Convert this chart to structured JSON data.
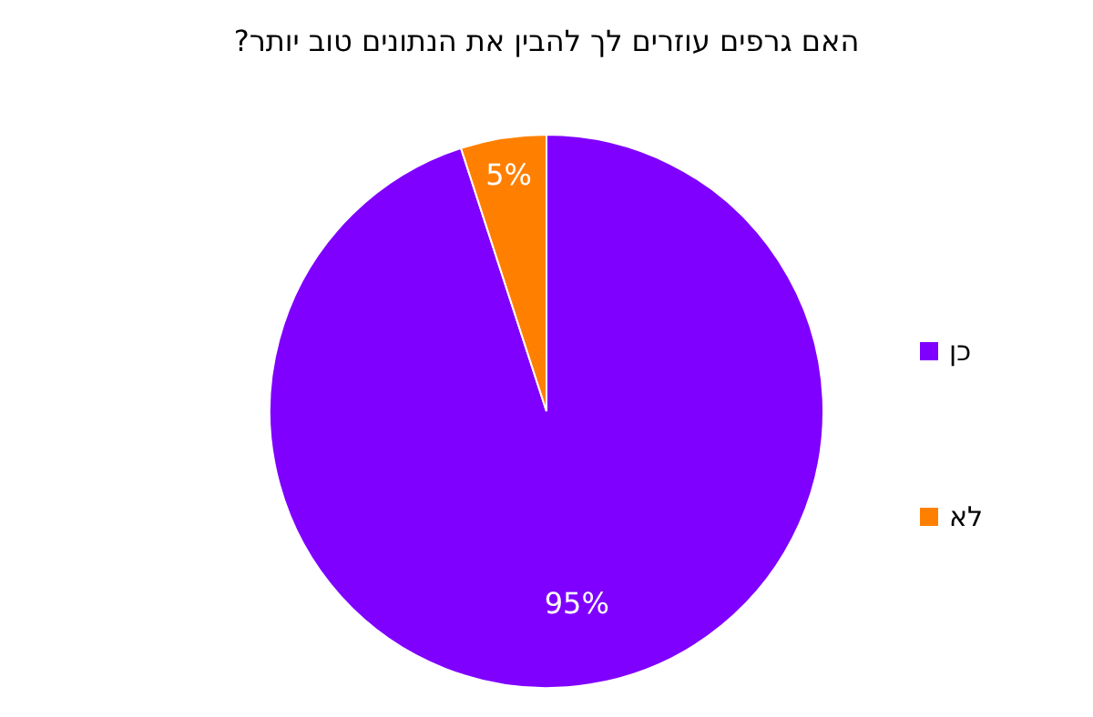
{
  "chart_data": {
    "type": "pie",
    "title": "האם גרפים עוזרים לך להבין את הנתונים טוב יותר?",
    "categories": [
      "כן",
      "לא"
    ],
    "values": [
      95,
      5
    ],
    "colors": [
      "#7f00ff",
      "#ff8000"
    ],
    "value_labels": [
      "95%",
      "5%"
    ],
    "legend": "right"
  }
}
